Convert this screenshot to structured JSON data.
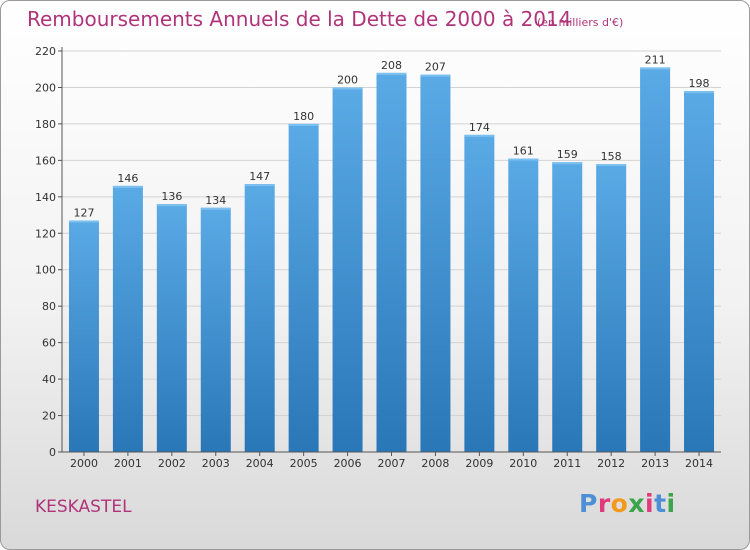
{
  "header": {
    "title": "Remboursements Annuels de la Dette de 2000 à 2014",
    "unit": "(en milliers d'€)"
  },
  "footer": {
    "place": "KESKASTEL",
    "logo_letters": [
      "P",
      "r",
      "o",
      "x",
      "i",
      "t",
      "i"
    ],
    "logo_colors": [
      "#4d8fd6",
      "#e03a7a",
      "#f39a1c",
      "#3aa54a",
      "#e03a7a",
      "#4d8fd6",
      "#3aa54a"
    ]
  },
  "colors": {
    "bar_top": "#5aaae6",
    "bar_bottom": "#2a77b8",
    "title": "#b0347a",
    "text": "#333333",
    "grid": "#d3d3d3"
  },
  "chart_data": {
    "type": "bar",
    "title": "Remboursements Annuels de la Dette de 2000 à 2014",
    "subtitle": "(en milliers d'€)",
    "categories": [
      "2000",
      "2001",
      "2002",
      "2003",
      "2004",
      "2005",
      "2006",
      "2007",
      "2008",
      "2009",
      "2010",
      "2011",
      "2012",
      "2013",
      "2014"
    ],
    "values": [
      127,
      146,
      136,
      134,
      147,
      180,
      200,
      208,
      207,
      174,
      161,
      159,
      158,
      211,
      198
    ],
    "ylim": [
      0,
      220
    ],
    "yticks": [
      0,
      20,
      40,
      60,
      80,
      100,
      120,
      140,
      160,
      180,
      200,
      220
    ],
    "xlabel": "",
    "ylabel": "",
    "grid": true
  }
}
